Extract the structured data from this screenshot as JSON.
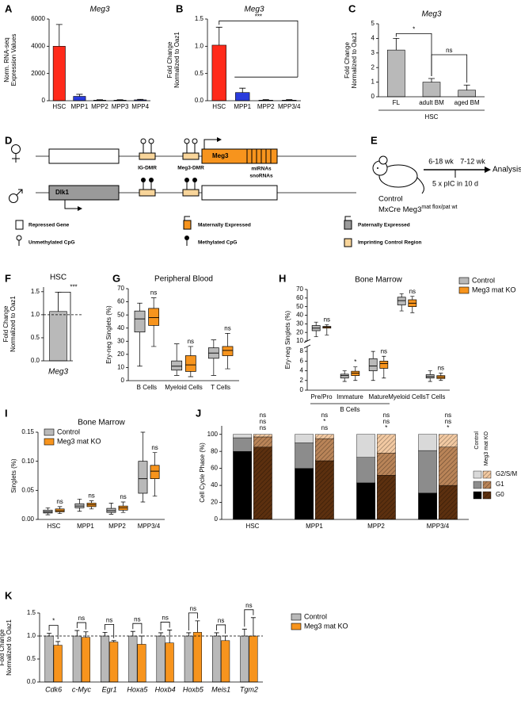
{
  "chart_data": [
    {
      "panel": "A",
      "type": "bar",
      "title": "Meg3",
      "ylabel": [
        "Norm. RNA-seq",
        "Expression Values"
      ],
      "categories": [
        "HSC",
        "MPP1",
        "MPP2",
        "MPP3",
        "MPP4"
      ],
      "values": [
        4000,
        320,
        40,
        40,
        60
      ],
      "errors": [
        1600,
        150,
        30,
        30,
        40
      ],
      "colors": [
        "#ff2a1a",
        "#2a3bdc",
        "#2a3bdc",
        "#2a3bdc",
        "#2a3bdc"
      ],
      "ylim": [
        0,
        6000
      ],
      "yticks": [
        0,
        2000,
        4000,
        6000
      ]
    },
    {
      "panel": "B",
      "type": "bar",
      "title": "Meg3",
      "ylabel": [
        "Fold Change",
        "Normalized to Oaz1"
      ],
      "categories": [
        "HSC",
        "MPP1",
        "MPP2",
        "MPP3/4"
      ],
      "values": [
        1.02,
        0.15,
        0.01,
        0.01
      ],
      "errors": [
        0.33,
        0.08,
        0.01,
        0.01
      ],
      "colors": [
        "#ff2a1a",
        "#2a3bdc",
        "#2a3bdc",
        "#2a3bdc"
      ],
      "ylim": [
        0,
        1.5
      ],
      "yticks": [
        {
          "value": 0,
          "label": "0.0"
        },
        {
          "value": 0.5,
          "label": "0.5"
        },
        {
          "value": 1,
          "label": "1.0"
        },
        {
          "value": 1.5,
          "label": "1.5"
        }
      ],
      "annotations": [
        "***"
      ]
    },
    {
      "panel": "C",
      "type": "bar",
      "title": "Meg3",
      "ylabel": [
        "Fold Change",
        "Normalized to Oaz1"
      ],
      "categories": [
        "FL",
        "adult BM",
        "aged BM"
      ],
      "values": [
        3.2,
        1.0,
        0.45
      ],
      "errors": [
        0.8,
        0.25,
        0.35
      ],
      "colors": [
        "#b9b9b9",
        "#b9b9b9",
        "#b9b9b9"
      ],
      "ylim": [
        0,
        5
      ],
      "yticks": [
        0,
        1,
        2,
        3,
        4,
        5
      ],
      "annotations": [
        "*",
        "ns"
      ],
      "group_label": "HSC"
    },
    {
      "panel": "F",
      "type": "bar",
      "title": "HSC",
      "ylabel": [
        "Fold Change",
        "Normalized to Oaz1"
      ],
      "categories": [
        "Meg3"
      ],
      "values": [
        1.07
      ],
      "errors": [
        0.42
      ],
      "colors": [
        "#b9b9b9"
      ],
      "ylim": [
        0,
        1.6
      ],
      "yticks": [
        {
          "value": 0,
          "label": "0.0"
        },
        {
          "value": 0.5,
          "label": "0.5"
        },
        {
          "value": 1,
          "label": "1.0"
        },
        {
          "value": 1.5,
          "label": "1.5"
        }
      ],
      "annotations": [
        "***"
      ],
      "reference_line": 1
    },
    {
      "panel": "G",
      "type": "box",
      "title": "Peripheral Blood",
      "ylabel": [
        "Ery-neg Singlets (%)"
      ],
      "categories": [
        "B Cells",
        "Myeloid Cells",
        "T Cells"
      ],
      "series": [
        {
          "name": "Control",
          "color": "#b9b9b9",
          "values": [
            [
              11,
              37,
              47,
              53,
              59
            ],
            [
              4,
              8,
              11,
              15,
              28
            ],
            [
              4,
              17,
              21,
              25,
              31
            ]
          ]
        },
        {
          "name": "Meg3 mat KO",
          "color": "#f7941d",
          "values": [
            [
              26,
              42,
              48,
              55,
              63
            ],
            [
              3,
              7,
              12,
              19,
              26
            ],
            [
              9,
              19,
              23,
              26,
              36
            ]
          ]
        }
      ],
      "ylim": [
        0,
        70
      ],
      "yticks": [
        0,
        10,
        20,
        30,
        40,
        50,
        60,
        70
      ],
      "significance": [
        "ns",
        "ns",
        "ns"
      ]
    },
    {
      "panel": "H",
      "type": "box",
      "title": "Bone Marrow",
      "ylabel": [
        "Ery-neg Singlets (%)"
      ],
      "categories": [
        "Pre/Pro",
        "Immature",
        "Mature",
        "Myeloid Cells",
        "T Cells"
      ],
      "group_label": "B Cells",
      "series": [
        {
          "name": "Control",
          "color": "#b9b9b9",
          "values": [
            [
              15,
              22,
              25,
              28,
              32
            ],
            [
              1.8,
              2.5,
              3,
              3.3,
              4
            ],
            [
              2,
              4,
              5,
              6.5,
              8
            ],
            [
              45,
              52,
              57,
              61,
              65
            ],
            [
              1.8,
              2.5,
              2.8,
              3.2,
              4
            ]
          ]
        },
        {
          "name": "Meg3 mat KO",
          "color": "#f7941d",
          "values": [
            [
              17,
              25,
              26,
              27,
              29
            ],
            [
              2,
              3,
              3.5,
              3.9,
              4.8
            ],
            [
              2.5,
              4.5,
              5.5,
              6,
              7
            ],
            [
              43,
              50,
              54,
              58,
              62
            ],
            [
              2,
              2.4,
              2.7,
              3,
              3.5
            ]
          ]
        }
      ],
      "ylim_upper": [
        10,
        70
      ],
      "yticks_upper": [
        10,
        20,
        30,
        40,
        50,
        60,
        70
      ],
      "ylim_lower": [
        0,
        9
      ],
      "yticks_lower": [
        0,
        2,
        4,
        6,
        8
      ],
      "significance": [
        "ns",
        "*",
        "ns",
        "ns",
        "ns"
      ],
      "legend": "outside right"
    },
    {
      "panel": "I",
      "type": "box",
      "title": "Bone Marrow",
      "ylabel": [
        "Singlets (%)"
      ],
      "categories": [
        "HSC",
        "MPP1",
        "MPP2",
        "MPP3/4"
      ],
      "series": [
        {
          "name": "Control",
          "color": "#b9b9b9",
          "values": [
            [
              0.008,
              0.011,
              0.013,
              0.016,
              0.02
            ],
            [
              0.014,
              0.02,
              0.023,
              0.027,
              0.035
            ],
            [
              0.009,
              0.012,
              0.015,
              0.019,
              0.028
            ],
            [
              0.03,
              0.045,
              0.07,
              0.1,
              0.15
            ]
          ]
        },
        {
          "name": "Meg3 mat KO",
          "color": "#f7941d",
          "values": [
            [
              0.01,
              0.013,
              0.015,
              0.018,
              0.022
            ],
            [
              0.018,
              0.022,
              0.025,
              0.028,
              0.032
            ],
            [
              0.012,
              0.016,
              0.02,
              0.023,
              0.03
            ],
            [
              0.04,
              0.07,
              0.083,
              0.093,
              0.115
            ]
          ]
        }
      ],
      "ylim": [
        0,
        0.15
      ],
      "yticks": [
        {
          "value": 0,
          "label": "0.00"
        },
        {
          "value": 0.05,
          "label": "0.05"
        },
        {
          "value": 0.1,
          "label": "0.10"
        },
        {
          "value": 0.15,
          "label": "0.15"
        }
      ],
      "significance": [
        "ns",
        "ns",
        "ns",
        "ns"
      ],
      "legend": "upper left"
    },
    {
      "panel": "J",
      "type": "stacked_bar",
      "ylabel": [
        "Cell Cycle Phase (%)"
      ],
      "categories": [
        "HSC",
        "MPP1",
        "MPP2",
        "MPP3/4"
      ],
      "groups": [
        "Control",
        "Meg3 mat KO"
      ],
      "series": [
        {
          "name": "G0",
          "colors": [
            "#000000",
            "#5c300f"
          ],
          "values": [
            [
              80,
              85
            ],
            [
              60,
              69
            ],
            [
              43,
              52
            ],
            [
              31,
              40
            ]
          ],
          "errors": [
            [
              18,
              3
            ],
            [
              10,
              8
            ],
            [
              8,
              7
            ],
            [
              14,
              10
            ]
          ]
        },
        {
          "name": "G1",
          "colors": [
            "#8c8c8c",
            "#b98458"
          ],
          "values": [
            [
              16,
              12
            ],
            [
              30,
              26
            ],
            [
              30,
              26
            ],
            [
              50,
              45
            ]
          ],
          "errors": [
            [
              3,
              2
            ],
            [
              4,
              4
            ],
            [
              7,
              5
            ],
            [
              6,
              5
            ]
          ]
        },
        {
          "name": "G2/S/M",
          "colors": [
            "#d9d9d9",
            "#f2c9a2"
          ],
          "values": [
            [
              4,
              3
            ],
            [
              10,
              5
            ],
            [
              27,
              22
            ],
            [
              19,
              15
            ]
          ]
        }
      ],
      "ylim": [
        0,
        110
      ],
      "yticks": [
        0,
        20,
        40,
        60,
        80,
        100
      ],
      "significance": [
        [
          "ns",
          "ns",
          "ns"
        ],
        [
          "ns",
          "*",
          "ns"
        ],
        [
          "ns",
          "ns",
          "*"
        ],
        [
          "ns",
          "ns",
          "*"
        ]
      ],
      "legend": "outside right"
    },
    {
      "panel": "K",
      "type": "grouped_bar",
      "ylabel": [
        "Fold Change",
        "Normalized to Oaz1"
      ],
      "categories": [
        "Cdk6",
        "c-Myc",
        "Egr1",
        "Hoxa5",
        "Hoxb4",
        "Hoxb5",
        "Meis1",
        "Tgm2"
      ],
      "series": [
        {
          "name": "Control",
          "color": "#b9b9b9",
          "values": [
            1,
            1,
            1,
            1,
            1,
            1,
            1,
            1
          ],
          "errors": [
            0.06,
            0.12,
            0.08,
            0.1,
            0.07,
            0.07,
            0.07,
            0.15
          ]
        },
        {
          "name": "Meg3 mat KO",
          "color": "#f7941d",
          "values": [
            0.8,
            0.97,
            0.87,
            0.82,
            0.85,
            1.08,
            0.9,
            1.0
          ],
          "errors": [
            0.08,
            0.12,
            0.03,
            0.18,
            0.28,
            0.25,
            0.1,
            0.4
          ]
        }
      ],
      "ylim": [
        0,
        1.5
      ],
      "yticks": [
        {
          "value": 0,
          "label": "0.0"
        },
        {
          "value": 0.5,
          "label": "0.5"
        },
        {
          "value": 1,
          "label": "1.0"
        },
        {
          "value": 1.5,
          "label": "1.5"
        }
      ],
      "annotations": [
        "*",
        "ns",
        "ns",
        "ns",
        "ns",
        "ns",
        "ns",
        "ns"
      ],
      "reference_line": 1,
      "legend": "outside right"
    }
  ],
  "diagram_d": {
    "panel": "D",
    "gene_maternal": "Meg3",
    "dmr_ig": "IG-DMR",
    "dmr_meg3": "Meg3-DMR",
    "noncoding": [
      "miRNAs",
      "snoRNAs"
    ],
    "gene_paternal": "Dlk1",
    "legend": [
      "Repressed Gene",
      "Maternally Expressed",
      "Paternally Expressed",
      "Unmethylated CpG",
      "Methylated CpG",
      "Imprinting Control Region"
    ]
  },
  "diagram_e": {
    "panel": "E",
    "period_1": "6-18 wk",
    "period_2": "7-12 wk",
    "endpoint": "Analysis",
    "treatment": "5 x pIC in 10 d",
    "groups": [
      "Control",
      "MxCre Meg3"
    ],
    "superscript": "mat flox/pat wt"
  }
}
